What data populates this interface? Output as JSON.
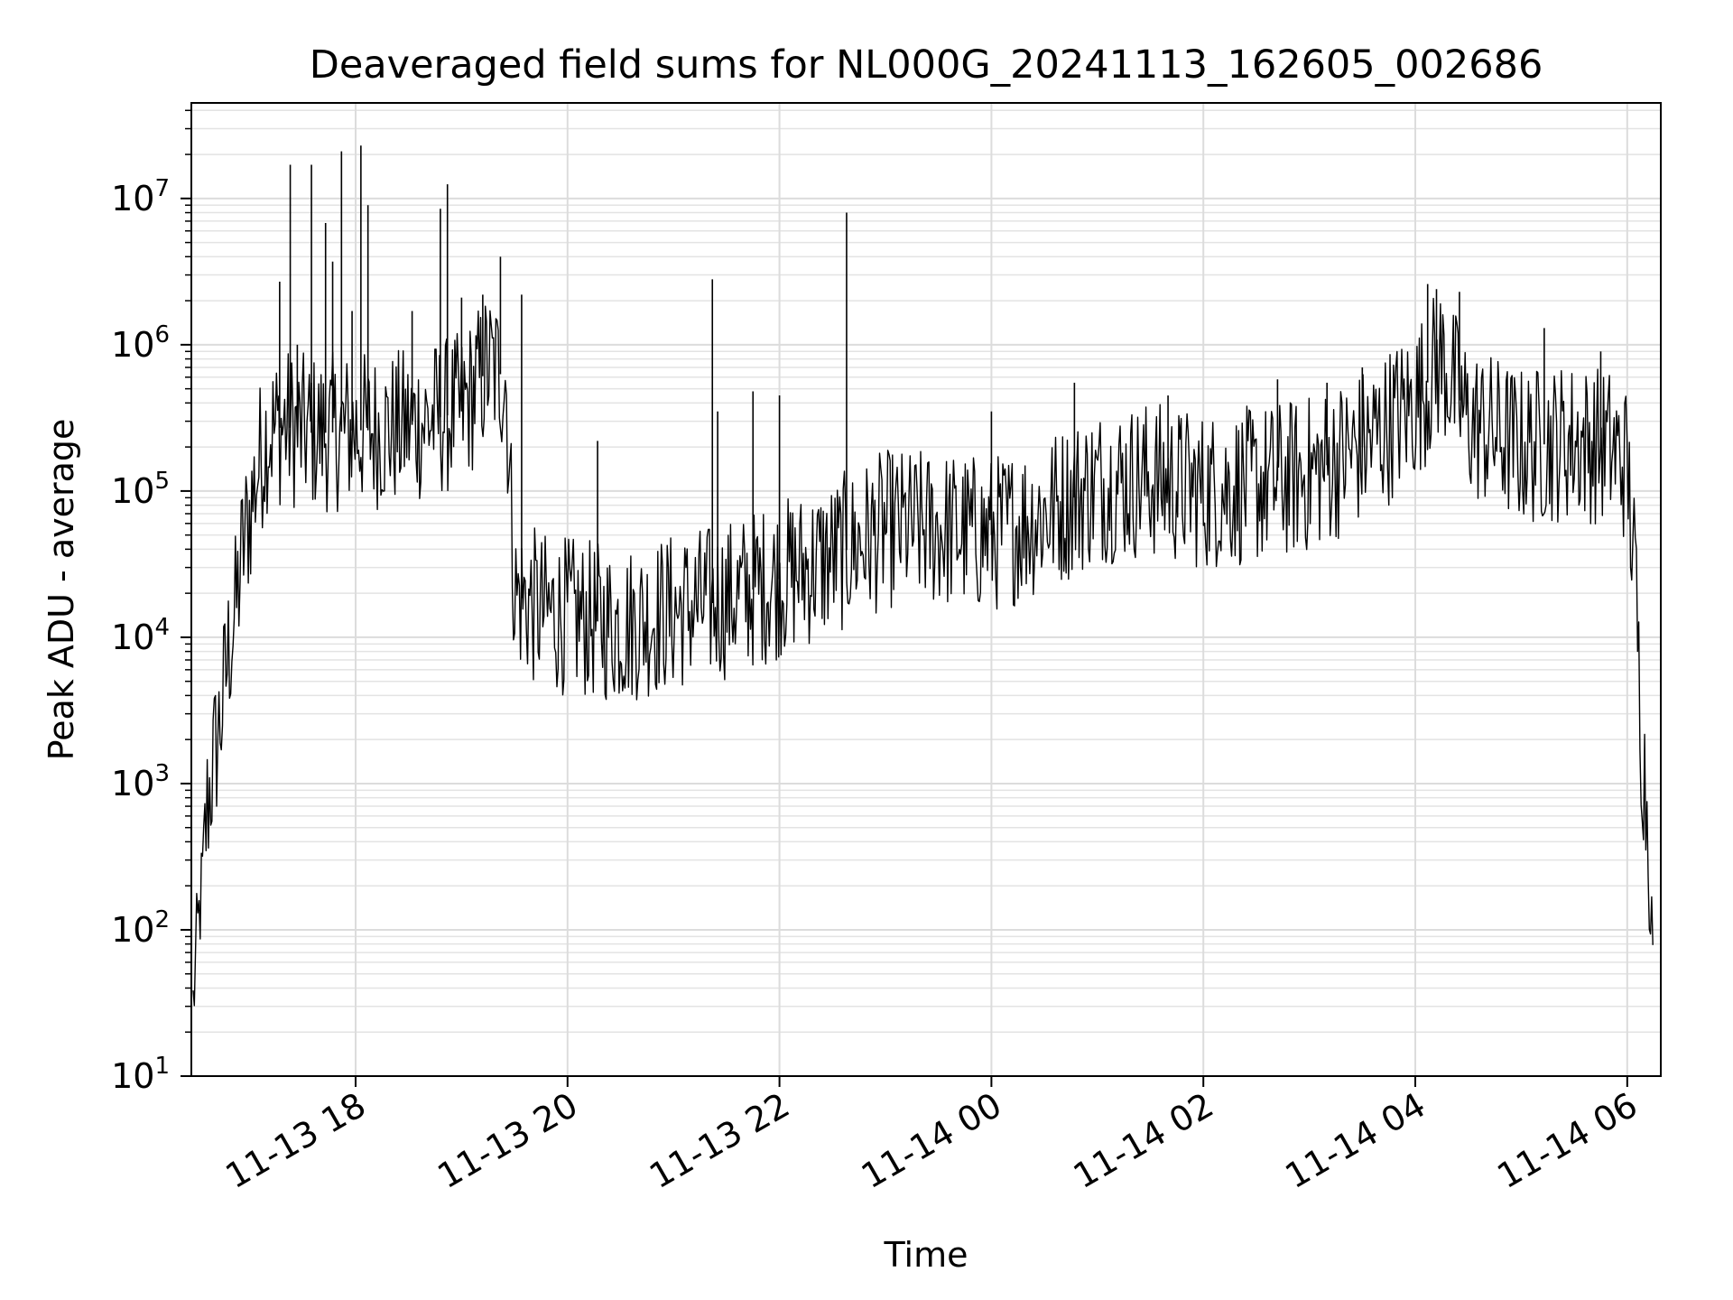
{
  "chart_data": {
    "type": "line",
    "title": "Deaveraged field sums for NL000G_20241113_162605_002686",
    "xlabel": "Time",
    "ylabel": "Peak ADU - average",
    "yscale": "log",
    "ylim": [
      10,
      45000000
    ],
    "xlim": [
      "2024-11-13 16:27",
      "2024-11-14 06:19"
    ],
    "x_ticks": [
      {
        "t": "2024-11-13 18:00",
        "label": "11-13 18"
      },
      {
        "t": "2024-11-13 20:00",
        "label": "11-13 20"
      },
      {
        "t": "2024-11-13 22:00",
        "label": "11-13 22"
      },
      {
        "t": "2024-11-14 00:00",
        "label": "11-14 00"
      },
      {
        "t": "2024-11-14 02:00",
        "label": "11-14 02"
      },
      {
        "t": "2024-11-14 04:00",
        "label": "11-14 04"
      },
      {
        "t": "2024-11-14 06:00",
        "label": "11-14 06"
      }
    ],
    "y_ticks": [
      {
        "value": 10,
        "base": "10",
        "exp": "1"
      },
      {
        "value": 100,
        "base": "10",
        "exp": "2"
      },
      {
        "value": 1000,
        "base": "10",
        "exp": "3"
      },
      {
        "value": 10000,
        "base": "10",
        "exp": "4"
      },
      {
        "value": 100000,
        "base": "10",
        "exp": "5"
      },
      {
        "value": 1000000,
        "base": "10",
        "exp": "6"
      },
      {
        "value": 10000000,
        "base": "10",
        "exp": "7"
      }
    ],
    "grid": true,
    "series_color": "#000000",
    "series": [
      {
        "x": [
          "2024-11-13 16:28",
          "2024-11-13 16:30",
          "2024-11-13 16:33",
          "2024-11-13 16:36",
          "2024-11-13 16:40",
          "2024-11-13 16:44",
          "2024-11-13 16:48",
          "2024-11-13 16:52",
          "2024-11-13 16:56",
          "2024-11-13 17:00",
          "2024-11-13 17:05",
          "2024-11-13 17:10",
          "2024-11-13 17:20",
          "2024-11-13 17:30",
          "2024-11-13 17:45",
          "2024-11-13 18:00",
          "2024-11-13 18:20",
          "2024-11-13 18:40",
          "2024-11-13 19:00",
          "2024-11-13 19:15",
          "2024-11-13 19:25",
          "2024-11-13 19:30",
          "2024-11-13 19:45",
          "2024-11-13 20:00",
          "2024-11-13 20:30",
          "2024-11-13 21:00",
          "2024-11-13 21:30",
          "2024-11-13 22:00",
          "2024-11-13 22:30",
          "2024-11-13 23:00",
          "2024-11-13 23:30",
          "2024-11-14 00:00",
          "2024-11-14 00:30",
          "2024-11-14 01:00",
          "2024-11-14 01:30",
          "2024-11-14 02:00",
          "2024-11-14 02:30",
          "2024-11-14 03:00",
          "2024-11-14 03:30",
          "2024-11-14 04:00",
          "2024-11-14 04:15",
          "2024-11-14 04:30",
          "2024-11-14 05:00",
          "2024-11-14 05:30",
          "2024-11-14 05:50",
          "2024-11-14 06:00",
          "2024-11-14 06:05",
          "2024-11-14 06:08",
          "2024-11-14 06:12",
          "2024-11-14 06:14",
          "2024-11-14 06:15"
        ],
        "y": [
          30,
          80,
          200,
          700,
          1500,
          3000,
          8000,
          15000,
          40000,
          70000,
          150000,
          250000,
          280000,
          250000,
          250000,
          260000,
          260000,
          300000,
          350000,
          700000,
          600000,
          20000,
          15000,
          14000,
          12000,
          15000,
          18000,
          25000,
          35000,
          55000,
          55000,
          50000,
          70000,
          110000,
          120000,
          100000,
          110000,
          130000,
          200000,
          400000,
          800000,
          300000,
          200000,
          220000,
          200000,
          150000,
          20000,
          2000,
          500,
          100,
          20
        ],
        "spikes": [
          {
            "x": "2024-11-13 17:17",
            "y": 2700000
          },
          {
            "x": "2024-11-13 17:27",
            "y": 1000000
          },
          {
            "x": "2024-11-13 17:35",
            "y": 550000
          },
          {
            "x": "2024-11-13 17:23",
            "y": 17000000
          },
          {
            "x": "2024-11-13 17:35",
            "y": 17000000
          },
          {
            "x": "2024-11-13 17:43",
            "y": 6800000
          },
          {
            "x": "2024-11-13 17:47",
            "y": 3700000
          },
          {
            "x": "2024-11-13 17:52",
            "y": 21000000
          },
          {
            "x": "2024-11-13 17:58",
            "y": 1700000
          },
          {
            "x": "2024-11-13 18:03",
            "y": 23000000
          },
          {
            "x": "2024-11-13 18:07",
            "y": 9000000
          },
          {
            "x": "2024-11-13 18:32",
            "y": 1700000
          },
          {
            "x": "2024-11-13 18:48",
            "y": 8500000
          },
          {
            "x": "2024-11-13 18:52",
            "y": 12500000
          },
          {
            "x": "2024-11-13 19:00",
            "y": 2100000
          },
          {
            "x": "2024-11-13 19:12",
            "y": 2200000
          },
          {
            "x": "2024-11-13 19:22",
            "y": 4000000
          },
          {
            "x": "2024-11-13 19:34",
            "y": 2200000
          },
          {
            "x": "2024-11-13 20:17",
            "y": 220000
          },
          {
            "x": "2024-11-13 21:22",
            "y": 2800000
          },
          {
            "x": "2024-11-13 21:25",
            "y": 350000
          },
          {
            "x": "2024-11-13 21:45",
            "y": 480000
          },
          {
            "x": "2024-11-13 22:00",
            "y": 450000
          },
          {
            "x": "2024-11-13 22:38",
            "y": 8000000
          },
          {
            "x": "2024-11-14 00:00",
            "y": 350000
          },
          {
            "x": "2024-11-14 00:47",
            "y": 550000
          },
          {
            "x": "2024-11-14 01:40",
            "y": 450000
          },
          {
            "x": "2024-11-14 02:42",
            "y": 580000
          },
          {
            "x": "2024-11-14 03:10",
            "y": 550000
          },
          {
            "x": "2024-11-14 03:30",
            "y": 700000
          },
          {
            "x": "2024-11-14 04:07",
            "y": 2600000
          },
          {
            "x": "2024-11-14 04:12",
            "y": 2400000
          },
          {
            "x": "2024-11-14 04:25",
            "y": 2300000
          },
          {
            "x": "2024-11-14 05:13",
            "y": 1300000
          },
          {
            "x": "2024-11-14 05:45",
            "y": 900000
          }
        ]
      }
    ]
  }
}
